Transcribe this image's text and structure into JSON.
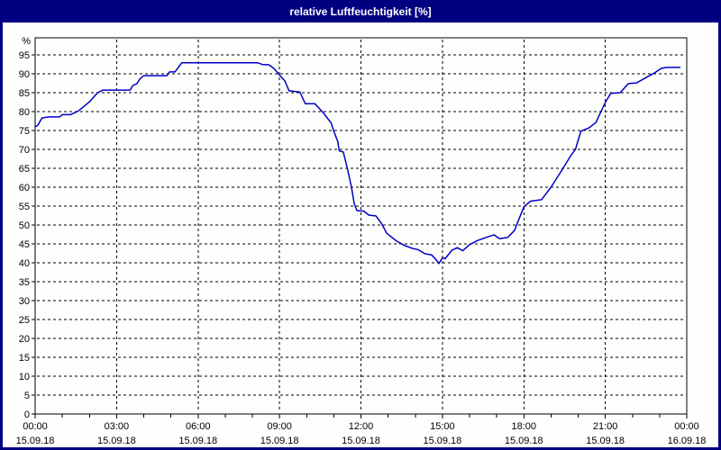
{
  "window": {
    "title": "relative Luftfeuchtigkeit [%]",
    "titlebar_color": "#000080",
    "content_background": "#fefefc"
  },
  "chart_data": {
    "type": "line",
    "title": "relative Luftfeuchtigkeit [%]",
    "ylabel": "%",
    "unit_label": "%",
    "ylim": [
      0,
      100
    ],
    "yticks": [
      0,
      5,
      10,
      15,
      20,
      25,
      30,
      35,
      40,
      45,
      50,
      55,
      60,
      65,
      70,
      75,
      80,
      85,
      90,
      95
    ],
    "xlim_hours": [
      0,
      24
    ],
    "grid": "dashed",
    "legend": "none",
    "line_color": "#0000c8",
    "grid_color": "#000000",
    "frame_color": "#000000",
    "x_major_ticks": [
      {
        "hour": 0,
        "time": "00:00",
        "date": "15.09.18"
      },
      {
        "hour": 3,
        "time": "03:00",
        "date": "15.09.18"
      },
      {
        "hour": 6,
        "time": "06:00",
        "date": "15.09.18"
      },
      {
        "hour": 9,
        "time": "09:00",
        "date": "15.09.18"
      },
      {
        "hour": 12,
        "time": "12:00",
        "date": "15.09.18"
      },
      {
        "hour": 15,
        "time": "15:00",
        "date": "15.09.18"
      },
      {
        "hour": 18,
        "time": "18:00",
        "date": "15.09.18"
      },
      {
        "hour": 21,
        "time": "21:00",
        "date": "15.09.18"
      },
      {
        "hour": 24,
        "time": "00:00",
        "date": "16.09.18"
      }
    ],
    "x_minor_tick_every_hours": 1,
    "series": [
      {
        "name": "relative Luftfeuchtigkeit",
        "points": [
          [
            0.0,
            76.0
          ],
          [
            0.1,
            76.4
          ],
          [
            0.25,
            78.3
          ],
          [
            0.5,
            78.6
          ],
          [
            0.9,
            78.6
          ],
          [
            1.0,
            79.2
          ],
          [
            1.3,
            79.2
          ],
          [
            1.6,
            80.2
          ],
          [
            2.0,
            82.6
          ],
          [
            2.3,
            85.0
          ],
          [
            2.5,
            85.7
          ],
          [
            3.5,
            85.7
          ],
          [
            3.6,
            86.9
          ],
          [
            3.75,
            87.4
          ],
          [
            3.85,
            88.6
          ],
          [
            4.0,
            89.5
          ],
          [
            4.85,
            89.5
          ],
          [
            4.95,
            90.5
          ],
          [
            5.15,
            90.5
          ],
          [
            5.4,
            92.9
          ],
          [
            8.2,
            92.9
          ],
          [
            8.4,
            92.4
          ],
          [
            8.6,
            92.4
          ],
          [
            8.8,
            91.4
          ],
          [
            9.0,
            89.7
          ],
          [
            9.2,
            88.1
          ],
          [
            9.35,
            85.5
          ],
          [
            9.75,
            85.2
          ],
          [
            9.95,
            82.1
          ],
          [
            10.3,
            82.1
          ],
          [
            10.6,
            79.8
          ],
          [
            10.9,
            77.0
          ],
          [
            11.0,
            74.8
          ],
          [
            11.15,
            72.0
          ],
          [
            11.2,
            69.6
          ],
          [
            11.35,
            69.3
          ],
          [
            11.5,
            65.0
          ],
          [
            11.65,
            60.0
          ],
          [
            11.75,
            55.7
          ],
          [
            11.85,
            53.8
          ],
          [
            12.1,
            53.7
          ],
          [
            12.3,
            52.6
          ],
          [
            12.55,
            52.4
          ],
          [
            12.75,
            50.5
          ],
          [
            12.95,
            47.8
          ],
          [
            13.3,
            45.8
          ],
          [
            13.6,
            44.6
          ],
          [
            13.9,
            43.8
          ],
          [
            14.1,
            43.5
          ],
          [
            14.35,
            42.4
          ],
          [
            14.6,
            42.1
          ],
          [
            14.75,
            41.0
          ],
          [
            14.87,
            39.8
          ],
          [
            15.0,
            41.3
          ],
          [
            15.1,
            41.1
          ],
          [
            15.35,
            43.3
          ],
          [
            15.55,
            44.0
          ],
          [
            15.75,
            43.2
          ],
          [
            16.0,
            44.8
          ],
          [
            16.3,
            45.9
          ],
          [
            16.6,
            46.7
          ],
          [
            16.9,
            47.4
          ],
          [
            17.1,
            46.4
          ],
          [
            17.4,
            46.7
          ],
          [
            17.65,
            48.5
          ],
          [
            18.0,
            54.8
          ],
          [
            18.25,
            56.3
          ],
          [
            18.65,
            56.7
          ],
          [
            19.0,
            60.0
          ],
          [
            19.4,
            64.5
          ],
          [
            19.75,
            68.6
          ],
          [
            19.9,
            70.0
          ],
          [
            20.1,
            74.8
          ],
          [
            20.4,
            75.7
          ],
          [
            20.65,
            77.1
          ],
          [
            21.0,
            82.4
          ],
          [
            21.2,
            84.8
          ],
          [
            21.55,
            85.0
          ],
          [
            21.85,
            87.4
          ],
          [
            22.15,
            87.6
          ],
          [
            22.5,
            89.0
          ],
          [
            22.8,
            90.2
          ],
          [
            23.05,
            91.4
          ],
          [
            23.25,
            91.7
          ],
          [
            23.75,
            91.7
          ]
        ]
      }
    ]
  }
}
